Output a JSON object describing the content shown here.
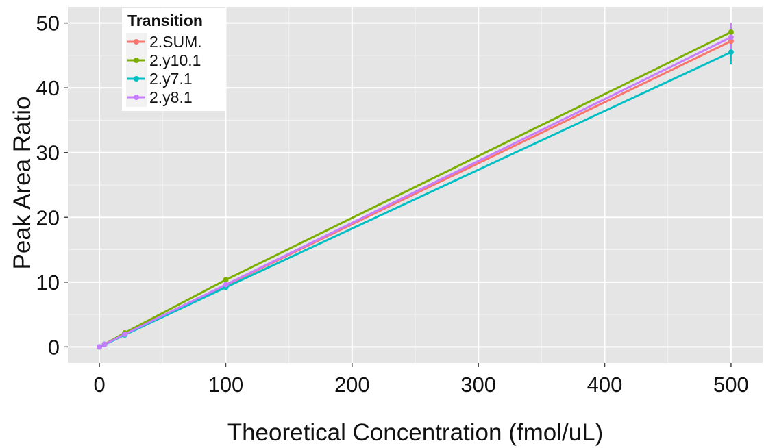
{
  "chart_data": {
    "type": "line",
    "xlabel": "Theoretical Concentration (fmol/uL)",
    "ylabel": "Peak Area Ratio",
    "xlim": [
      -25,
      525
    ],
    "ylim": [
      -2.5,
      52.5
    ],
    "x_ticks": [
      0,
      100,
      200,
      300,
      400,
      500
    ],
    "y_ticks": [
      0,
      10,
      20,
      30,
      40,
      50
    ],
    "grid": true,
    "background": "#e5e5e5",
    "legend": {
      "title": "Transition",
      "position": "top-left",
      "entries": [
        "2.SUM.",
        "2.y10.1",
        "2.y7.1",
        "2.y8.1"
      ]
    },
    "series": [
      {
        "name": "2.SUM.",
        "color": "#f8766d",
        "points": [
          [
            0,
            0.0
          ],
          [
            4,
            0.38
          ],
          [
            20,
            1.9
          ],
          [
            100,
            9.5
          ],
          [
            500,
            47.2
          ]
        ],
        "error_bars": [
          [
            500,
            46.4,
            48.0
          ]
        ]
      },
      {
        "name": "2.y10.1",
        "color": "#7cae00",
        "points": [
          [
            0,
            0.0
          ],
          [
            4,
            0.4
          ],
          [
            20,
            2.15
          ],
          [
            100,
            10.35
          ],
          [
            500,
            48.6
          ]
        ],
        "error_bars": [
          [
            20,
            1.8,
            2.5
          ],
          [
            100,
            10.0,
            10.7
          ],
          [
            500,
            47.9,
            49.3
          ]
        ]
      },
      {
        "name": "2.y7.1",
        "color": "#00bfc4",
        "points": [
          [
            0,
            0.0
          ],
          [
            4,
            0.36
          ],
          [
            20,
            1.85
          ],
          [
            100,
            9.2
          ],
          [
            500,
            45.5
          ]
        ],
        "error_bars": [
          [
            500,
            43.6,
            47.4
          ]
        ]
      },
      {
        "name": "2.y8.1",
        "color": "#c77cff",
        "points": [
          [
            0,
            0.0
          ],
          [
            4,
            0.39
          ],
          [
            20,
            1.95
          ],
          [
            100,
            9.6
          ],
          [
            500,
            47.8
          ]
        ],
        "error_bars": [
          [
            20,
            1.6,
            2.3
          ],
          [
            100,
            8.7,
            10.5
          ],
          [
            500,
            45.8,
            50.0
          ]
        ]
      }
    ]
  }
}
